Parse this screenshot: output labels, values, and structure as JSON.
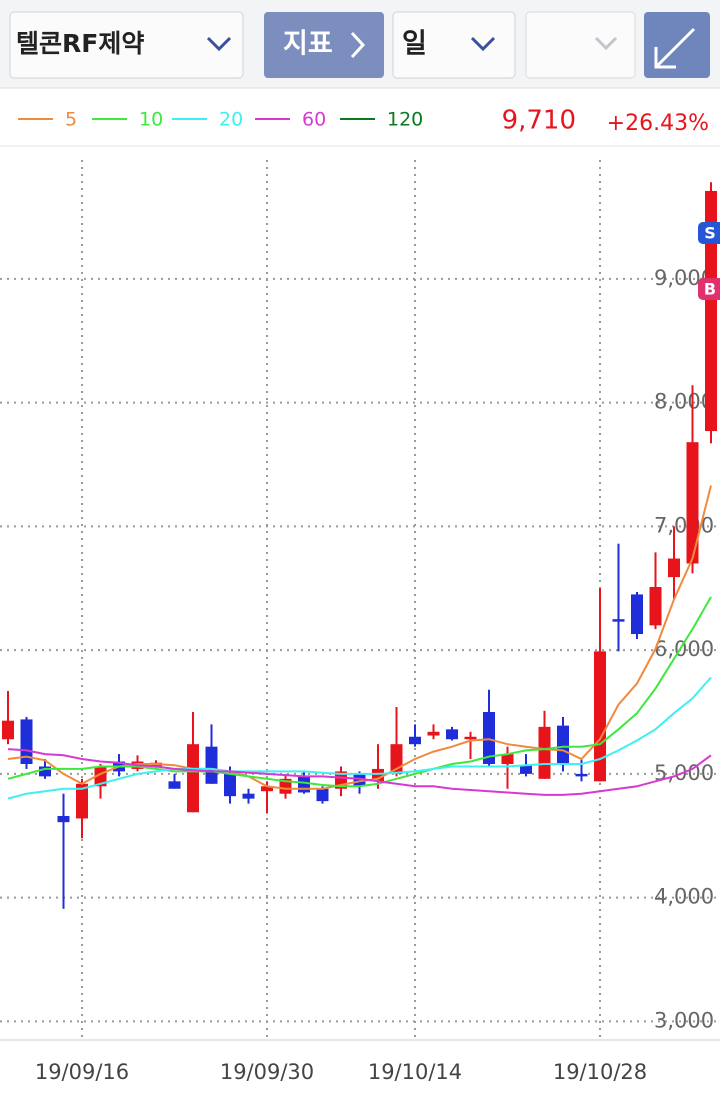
{
  "toolbar": {
    "stock": "텔콘RF제약",
    "indicator": "지표",
    "period": "일"
  },
  "quote": {
    "price": "9,710",
    "change": "+26.43%"
  },
  "chart_data": {
    "type": "candlestick",
    "categories": [
      null,
      null,
      null,
      null,
      "19/09/16",
      null,
      null,
      null,
      null,
      null,
      null,
      null,
      null,
      null,
      "19/09/30",
      null,
      null,
      null,
      null,
      null,
      null,
      null,
      "19/10/14",
      null,
      null,
      null,
      null,
      null,
      null,
      null,
      null,
      null,
      "19/10/28",
      null,
      null,
      null,
      null,
      null,
      null
    ],
    "open": [
      5280,
      5440,
      5060,
      4660,
      4640,
      4900,
      5100,
      5040,
      5060,
      4940,
      4690,
      5220,
      5000,
      4840,
      4860,
      4840,
      4980,
      4880,
      4880,
      5000,
      4940,
      5000,
      5300,
      5310,
      5360,
      5280,
      5500,
      5080,
      5070,
      4960,
      5390,
      5000,
      4940,
      6250,
      6450,
      6200,
      6590,
      6700,
      7770
    ],
    "high": [
      5670,
      5460,
      5120,
      4840,
      4960,
      5080,
      5160,
      5150,
      5110,
      5000,
      5500,
      5400,
      5060,
      4880,
      4940,
      5000,
      5020,
      4900,
      5060,
      5020,
      5240,
      5540,
      5400,
      5400,
      5380,
      5340,
      5680,
      5220,
      5160,
      5510,
      5460,
      5120,
      6500,
      6860,
      6470,
      6790,
      7000,
      8140,
      9780
    ],
    "low": [
      5240,
      5040,
      4960,
      3910,
      4480,
      4800,
      4980,
      5020,
      5050,
      4880,
      4690,
      4920,
      4760,
      4760,
      4680,
      4800,
      4840,
      4760,
      4820,
      4840,
      4880,
      4980,
      5220,
      5280,
      5270,
      5120,
      5060,
      4880,
      4980,
      4960,
      5020,
      4940,
      4940,
      5990,
      6090,
      6170,
      6410,
      6620,
      7670
    ],
    "close": [
      5430,
      5080,
      4980,
      4610,
      4920,
      5060,
      5020,
      5100,
      5090,
      4880,
      5240,
      4920,
      4820,
      4800,
      4900,
      4960,
      4850,
      4780,
      5020,
      4900,
      5040,
      5240,
      5240,
      5340,
      5280,
      5300,
      5080,
      5160,
      5000,
      5380,
      5080,
      4980,
      5990,
      6230,
      6130,
      6510,
      6740,
      7680,
      9710
    ],
    "up_color": "#e8141c",
    "down_color": "#1f2ed8",
    "series": [
      {
        "name": "5",
        "color": "#f08a3c",
        "values": [
          5120,
          5140,
          5110,
          5000,
          4920,
          5000,
          5060,
          5080,
          5080,
          5070,
          5040,
          5040,
          5020,
          4980,
          4900,
          4880,
          4880,
          4880,
          4910,
          4940,
          4960,
          5040,
          5120,
          5180,
          5220,
          5270,
          5280,
          5240,
          5220,
          5200,
          5190,
          5120,
          5280,
          5560,
          5730,
          6010,
          6410,
          6740,
          7330
        ]
      },
      {
        "name": "10",
        "color": "#3ee83e",
        "values": [
          4960,
          5000,
          5040,
          5040,
          5040,
          5060,
          5060,
          5060,
          5040,
          5020,
          5020,
          5020,
          5000,
          4980,
          4960,
          4940,
          4930,
          4910,
          4900,
          4900,
          4920,
          4960,
          5000,
          5040,
          5080,
          5100,
          5140,
          5160,
          5190,
          5200,
          5220,
          5220,
          5240,
          5360,
          5490,
          5690,
          5930,
          6170,
          6430
        ]
      },
      {
        "name": "20",
        "color": "#3ef0f0",
        "values": [
          4800,
          4840,
          4860,
          4880,
          4880,
          4920,
          4960,
          5000,
          5020,
          5040,
          5040,
          5040,
          5020,
          5020,
          5020,
          5020,
          5020,
          5010,
          5000,
          5000,
          5000,
          5010,
          5020,
          5040,
          5060,
          5060,
          5060,
          5060,
          5070,
          5080,
          5080,
          5080,
          5120,
          5190,
          5270,
          5360,
          5490,
          5610,
          5780
        ]
      },
      {
        "name": "60",
        "color": "#d63ad0",
        "values": [
          5200,
          5190,
          5160,
          5150,
          5120,
          5100,
          5090,
          5070,
          5060,
          5040,
          5030,
          5020,
          5020,
          5010,
          5000,
          4990,
          4980,
          4980,
          4970,
          4960,
          4940,
          4920,
          4900,
          4900,
          4880,
          4870,
          4860,
          4850,
          4840,
          4830,
          4830,
          4840,
          4860,
          4880,
          4900,
          4940,
          4980,
          5040,
          5150
        ]
      },
      {
        "name": "120",
        "color": "#0a7a1e",
        "values": [
          null,
          null,
          null,
          null,
          null,
          null,
          null,
          null,
          null,
          null,
          null,
          null,
          null,
          null,
          null,
          null,
          null,
          null,
          null,
          null,
          null,
          null,
          null,
          null,
          null,
          null,
          null,
          null,
          null,
          null,
          null,
          null,
          null,
          null,
          null,
          null,
          null,
          null,
          null
        ]
      }
    ],
    "ylim": [
      2850,
      9960
    ],
    "yticks": [
      {
        "value": 3000,
        "label": "3,000"
      },
      {
        "value": 4000,
        "label": "4,000"
      },
      {
        "value": 5000,
        "label": "5,000"
      },
      {
        "value": 6000,
        "label": "6,000"
      },
      {
        "value": 7000,
        "label": "7,000"
      },
      {
        "value": 8000,
        "label": "8,000"
      },
      {
        "value": 9000,
        "label": "9,000"
      }
    ],
    "grid": true,
    "markers": [
      {
        "label": "S",
        "color": "#2456d6"
      },
      {
        "label": "B",
        "color": "#e0306e"
      }
    ]
  }
}
